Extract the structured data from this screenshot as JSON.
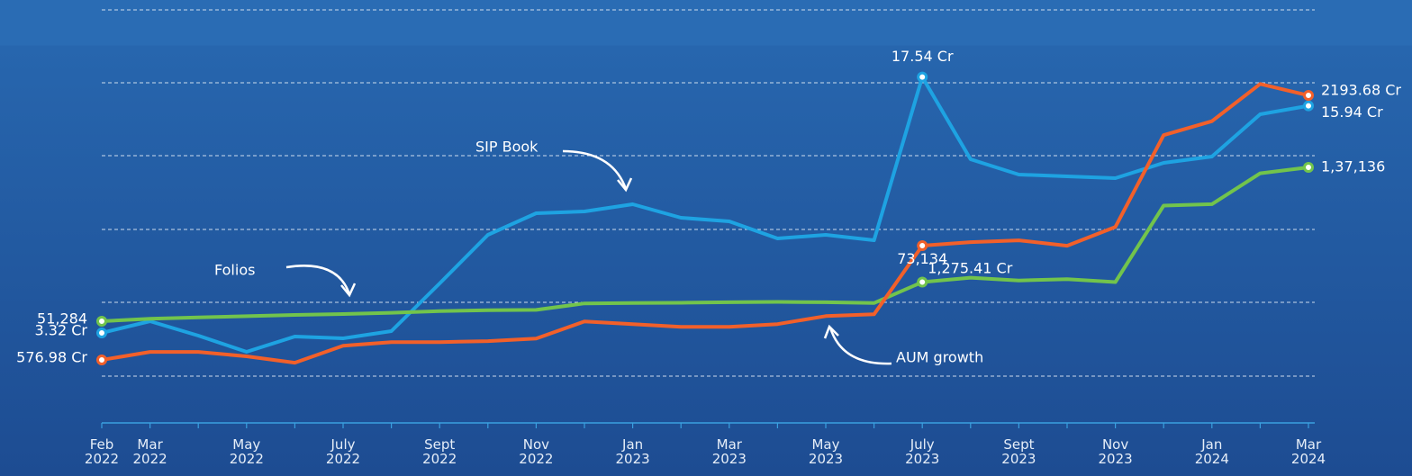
{
  "chart_data": {
    "type": "line",
    "categories": [
      "Feb 2022",
      "Mar 2022",
      null,
      "May 2022",
      null,
      "July 2022",
      null,
      "Sept 2022",
      null,
      "Nov 2022",
      null,
      "Jan 2023",
      null,
      "Mar 2023",
      null,
      "May 2023",
      null,
      "July 2023",
      null,
      "Sept 2023",
      null,
      "Nov 2023",
      null,
      "Jan 2024",
      null,
      "Mar 2024"
    ],
    "series": [
      {
        "name": "SIP Book",
        "color": "#1ea3e2",
        "ylim": [
          -1.68,
          21.82
        ],
        "values": [
          3.32,
          3.97,
          3.17,
          2.27,
          3.12,
          3.02,
          3.42,
          6.07,
          8.77,
          9.97,
          10.07,
          10.47,
          9.72,
          9.52,
          8.57,
          8.77,
          8.47,
          17.54,
          12.97,
          12.12,
          12.02,
          11.92,
          12.77,
          13.12,
          15.47,
          15.94
        ],
        "value_labels": [
          "3.32 Cr",
          null,
          null,
          null,
          null,
          null,
          null,
          null,
          null,
          null,
          null,
          null,
          null,
          null,
          null,
          null,
          null,
          "17.54 Cr",
          null,
          null,
          null,
          null,
          null,
          null,
          null,
          "15.94 Cr"
        ]
      },
      {
        "name": "Folios",
        "color": "#72c44c",
        "ylim": [
          -5442,
          230498
        ],
        "values": [
          51284,
          52700,
          53400,
          54100,
          54800,
          55300,
          56000,
          56900,
          57400,
          57600,
          61200,
          61400,
          61600,
          61900,
          62100,
          61900,
          61400,
          73134,
          75600,
          74000,
          74800,
          73100,
          115800,
          116600,
          133800,
          137136
        ],
        "value_labels": [
          "51,284",
          null,
          null,
          null,
          null,
          null,
          null,
          null,
          null,
          null,
          null,
          null,
          null,
          null,
          null,
          null,
          null,
          "73,134",
          null,
          null,
          null,
          null,
          null,
          null,
          null,
          "1,37,136"
        ]
      },
      {
        "name": "AUM growth",
        "color": "#f2602a",
        "ylim": [
          192,
          2777
        ],
        "values": [
          576.98,
          626,
          626,
          599,
          560,
          664,
          686,
          686,
          692,
          708,
          812,
          796,
          779,
          779,
          796,
          845,
          856,
          1275.41,
          1297,
          1308,
          1275,
          1390,
          1951,
          2036,
          2264,
          2193.68
        ],
        "value_labels": [
          "576.98 Cr",
          null,
          null,
          null,
          null,
          null,
          null,
          null,
          null,
          null,
          null,
          null,
          null,
          null,
          null,
          null,
          null,
          "1,275.41 Cr",
          null,
          null,
          null,
          null,
          null,
          null,
          null,
          "2193.68 Cr"
        ]
      }
    ]
  }
}
